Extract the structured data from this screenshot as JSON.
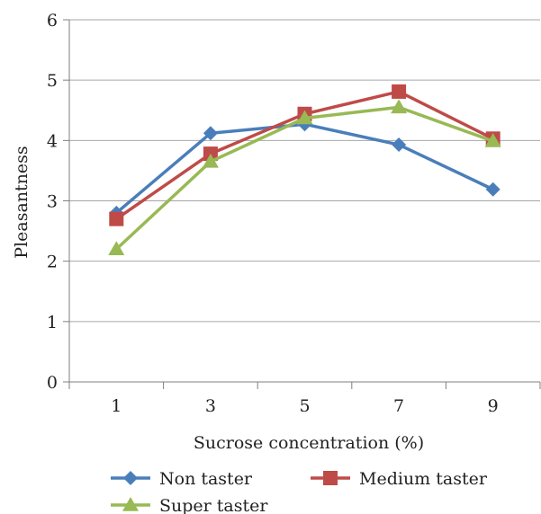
{
  "chart_data": {
    "type": "line",
    "xlabel": "Sucrose concentration (%)",
    "ylabel": "Pleasantness",
    "categories": [
      "1",
      "3",
      "5",
      "7",
      "9"
    ],
    "ylim": [
      0,
      6
    ],
    "yticks": [
      "0",
      "1",
      "2",
      "3",
      "4",
      "5",
      "6"
    ],
    "grid": true,
    "legend_position": "bottom",
    "series": [
      {
        "name": "Non taster",
        "values": [
          2.8,
          4.12,
          4.27,
          3.93,
          3.19
        ],
        "color": "#4a7ebb",
        "marker": "diamond"
      },
      {
        "name": "Medium taster",
        "values": [
          2.7,
          3.78,
          4.44,
          4.81,
          4.03
        ],
        "color": "#be4b48",
        "marker": "square"
      },
      {
        "name": "Super taster",
        "values": [
          2.2,
          3.65,
          4.37,
          4.55,
          3.99
        ],
        "color": "#98b954",
        "marker": "triangle"
      }
    ]
  }
}
